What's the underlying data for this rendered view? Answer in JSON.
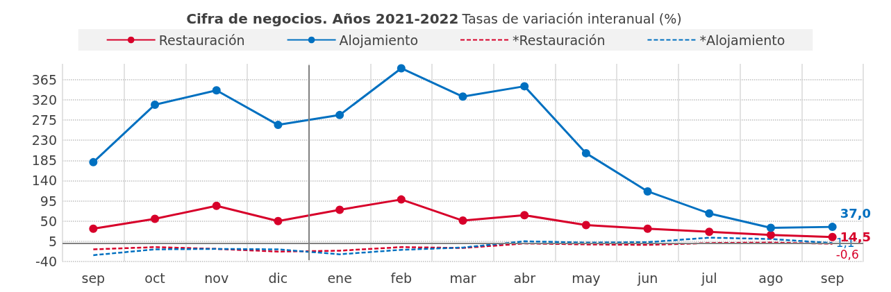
{
  "chart_data": {
    "type": "line",
    "title": "Cifra de negocios. Años 2021-2022",
    "subtitle": "Tasas de variación interanual (%)",
    "categories": [
      "sep",
      "oct",
      "nov",
      "dic",
      "ene",
      "feb",
      "mar",
      "abr",
      "may",
      "jun",
      "jul",
      "ago",
      "sep"
    ],
    "series": [
      {
        "name": "Restauración",
        "color": "#d7002a",
        "line_style": "solid",
        "marker": "circle",
        "values": [
          33,
          55,
          84,
          50,
          75,
          98,
          51,
          63,
          41,
          33,
          26,
          19,
          14.5
        ],
        "value_labels": [
          null,
          null,
          null,
          null,
          null,
          null,
          null,
          null,
          null,
          null,
          null,
          null,
          "14,5"
        ]
      },
      {
        "name": "Alojamiento",
        "color": "#0070c0",
        "line_style": "solid",
        "marker": "circle",
        "values": [
          181,
          309,
          341,
          264,
          286,
          390,
          327,
          350,
          201,
          116,
          67,
          35,
          37.0
        ],
        "value_labels": [
          null,
          null,
          null,
          null,
          null,
          null,
          null,
          null,
          null,
          null,
          null,
          null,
          "37,0"
        ]
      },
      {
        "name": "*Restauración",
        "color": "#d7002a",
        "line_style": "dashed",
        "marker": "none",
        "values": [
          -13,
          -8,
          -12,
          -18,
          -16,
          -8,
          -10,
          0,
          -2,
          -3,
          1,
          2,
          -0.6
        ],
        "value_labels": [
          null,
          null,
          null,
          null,
          null,
          null,
          null,
          null,
          null,
          null,
          null,
          null,
          "-0,6"
        ]
      },
      {
        "name": "*Alojamiento",
        "color": "#0070c0",
        "line_style": "dashed",
        "marker": "none",
        "values": [
          -26,
          -13,
          -12,
          -13,
          -24,
          -14,
          -9,
          5,
          2,
          3,
          13,
          10,
          1.1
        ],
        "value_labels": [
          null,
          null,
          null,
          null,
          null,
          null,
          null,
          null,
          null,
          null,
          null,
          null,
          "1,1"
        ]
      }
    ],
    "ylim": [
      -40,
      400
    ],
    "yticks": [
      -40,
      5,
      50,
      95,
      140,
      185,
      230,
      275,
      320,
      365
    ],
    "ref_lines": [
      {
        "axis": "x",
        "value": "ene",
        "color": "#808080"
      },
      {
        "axis": "y",
        "value": 0,
        "color": "#808080"
      }
    ],
    "grid": true,
    "legend": "top"
  }
}
